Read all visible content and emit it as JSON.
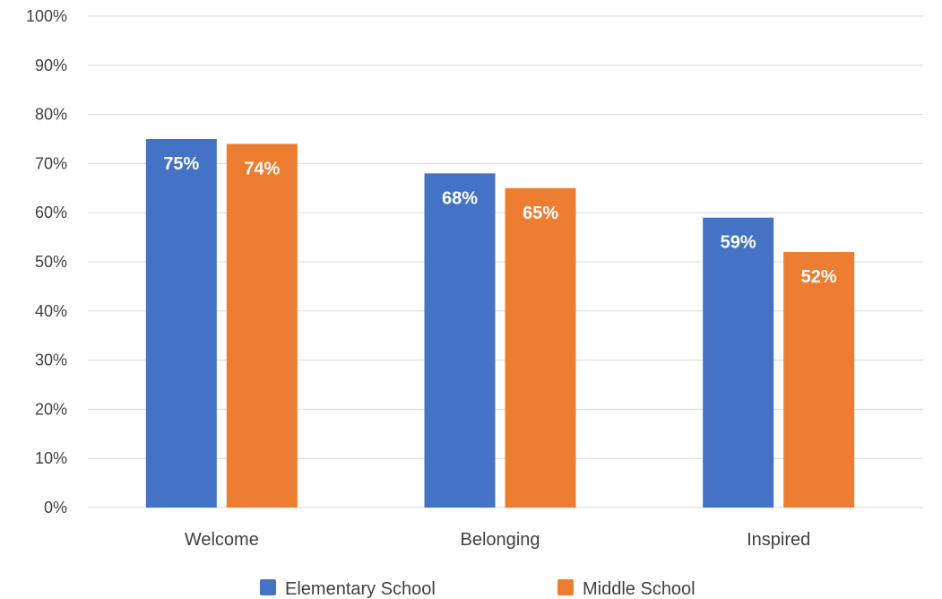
{
  "chart_data": {
    "type": "bar",
    "title": "",
    "xlabel": "",
    "ylabel": "",
    "categories": [
      "Welcome",
      "Belonging",
      "Inspired"
    ],
    "series": [
      {
        "name": "Elementary School",
        "values": [
          75,
          68,
          59
        ],
        "labels": [
          "75%",
          "68%",
          "59%"
        ],
        "color": "#4472C4"
      },
      {
        "name": "Middle School",
        "values": [
          74,
          65,
          52
        ],
        "labels": [
          "74%",
          "65%",
          "52%"
        ],
        "color": "#ED7D31"
      }
    ],
    "ylim": [
      0,
      100
    ],
    "yticks": [
      0,
      10,
      20,
      30,
      40,
      50,
      60,
      70,
      80,
      90,
      100
    ],
    "ytick_labels": [
      "0%",
      "10%",
      "20%",
      "30%",
      "40%",
      "50%",
      "60%",
      "70%",
      "80%",
      "90%",
      "100%"
    ],
    "grid": true,
    "legend_position": "bottom",
    "gridline_color": "#D9D9D9"
  }
}
